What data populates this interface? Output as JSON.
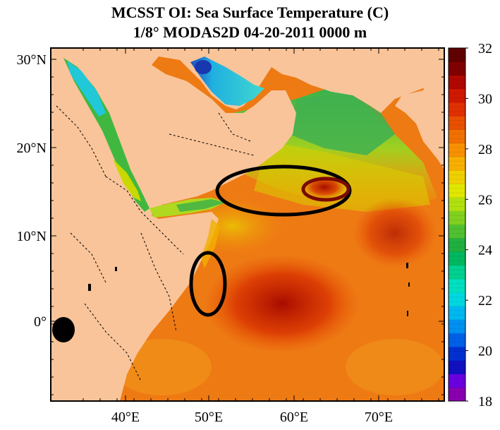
{
  "title": "MCSST OI:  Sea Surface Temperature (C)",
  "subtitle": "1/8° MODAS2D 04-20-2011 0000 m",
  "axes": {
    "lat_ticks": [
      "30°N",
      "20°N",
      "10°N",
      "0°"
    ],
    "lon_ticks": [
      "40°E",
      "50°E",
      "60°E",
      "70°E"
    ]
  },
  "colorbar": {
    "min": 18,
    "max": 32,
    "labels": [
      "32",
      "30",
      "28",
      "26",
      "24",
      "22",
      "20",
      "18"
    ],
    "colors": [
      "#8a00b0",
      "#6a00e0",
      "#1010c0",
      "#0030d0",
      "#0060e8",
      "#0090f0",
      "#00b8f0",
      "#00d8e0",
      "#00e0c0",
      "#00d090",
      "#00b860",
      "#20b040",
      "#50c030",
      "#80d020",
      "#b0e010",
      "#e0e800",
      "#f0d000",
      "#f8b000",
      "#f89000",
      "#f07000",
      "#e85000",
      "#e03000",
      "#d01800",
      "#b00800",
      "#800000",
      "#600000"
    ]
  },
  "colors": {
    "land": "#f9c49a",
    "ocean_warm": "#f07a10",
    "ocean_hot": "#c81800",
    "gulf": "#40c8e0",
    "ellipse_black": "#000000",
    "ellipse_red": "#7a0a00"
  }
}
